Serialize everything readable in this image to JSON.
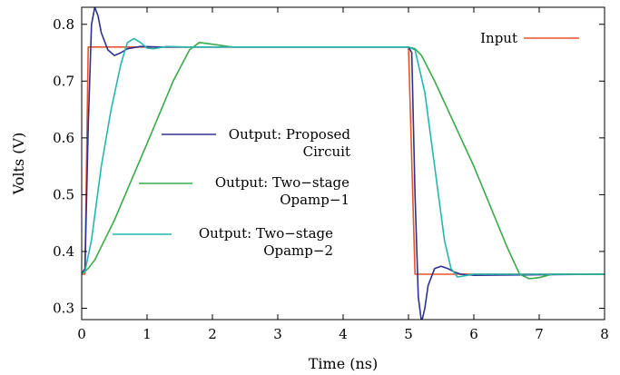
{
  "chart_data": {
    "type": "line",
    "xlabel": "Time (ns)",
    "ylabel": "Volts (V)",
    "xlim": [
      0,
      8
    ],
    "ylim": [
      0.28,
      0.83
    ],
    "x_ticks": [
      "0",
      "1",
      "2",
      "3",
      "4",
      "5",
      "6",
      "7",
      "8"
    ],
    "y_ticks": [
      "0.3",
      "0.4",
      "0.5",
      "0.6",
      "0.7",
      "0.8"
    ],
    "x_tick_values": [
      0,
      1,
      2,
      3,
      4,
      5,
      6,
      7,
      8
    ],
    "y_tick_values": [
      0.3,
      0.4,
      0.5,
      0.6,
      0.7,
      0.8
    ],
    "grid": false,
    "series": [
      {
        "name": "Input",
        "color": "#e8532b",
        "points": [
          [
            0,
            0.36
          ],
          [
            0.05,
            0.36
          ],
          [
            0.1,
            0.76
          ],
          [
            5.0,
            0.76
          ],
          [
            5.1,
            0.36
          ],
          [
            8.0,
            0.36
          ]
        ]
      },
      {
        "name": "Output: Proposed Circuit",
        "name_lines": [
          "Output: Proposed",
          "Circuit"
        ],
        "color": "#2e3192",
        "points": [
          [
            0,
            0.36
          ],
          [
            0.05,
            0.37
          ],
          [
            0.1,
            0.62
          ],
          [
            0.15,
            0.8
          ],
          [
            0.2,
            0.83
          ],
          [
            0.25,
            0.815
          ],
          [
            0.3,
            0.785
          ],
          [
            0.4,
            0.755
          ],
          [
            0.5,
            0.745
          ],
          [
            0.6,
            0.75
          ],
          [
            0.7,
            0.757
          ],
          [
            0.9,
            0.761
          ],
          [
            1.2,
            0.76
          ],
          [
            5.0,
            0.76
          ],
          [
            5.05,
            0.75
          ],
          [
            5.1,
            0.5
          ],
          [
            5.15,
            0.32
          ],
          [
            5.2,
            0.275
          ],
          [
            5.25,
            0.3
          ],
          [
            5.3,
            0.34
          ],
          [
            5.4,
            0.37
          ],
          [
            5.5,
            0.374
          ],
          [
            5.6,
            0.37
          ],
          [
            5.7,
            0.364
          ],
          [
            5.8,
            0.36
          ],
          [
            6.0,
            0.358
          ],
          [
            8.0,
            0.36
          ]
        ]
      },
      {
        "name": "Output: Two-stage Opamp-1",
        "name_lines": [
          "Output: Two−stage",
          "Opamp−1"
        ],
        "color": "#3aaa49",
        "points": [
          [
            0,
            0.36
          ],
          [
            0.1,
            0.37
          ],
          [
            0.2,
            0.385
          ],
          [
            0.5,
            0.455
          ],
          [
            1.0,
            0.59
          ],
          [
            1.4,
            0.7
          ],
          [
            1.65,
            0.755
          ],
          [
            1.8,
            0.768
          ],
          [
            2.0,
            0.765
          ],
          [
            2.3,
            0.76
          ],
          [
            5.0,
            0.76
          ],
          [
            5.1,
            0.757
          ],
          [
            5.2,
            0.745
          ],
          [
            5.4,
            0.7
          ],
          [
            6.0,
            0.55
          ],
          [
            6.5,
            0.41
          ],
          [
            6.7,
            0.36
          ],
          [
            6.85,
            0.352
          ],
          [
            7.0,
            0.354
          ],
          [
            7.2,
            0.36
          ],
          [
            8.0,
            0.36
          ]
        ]
      },
      {
        "name": "Output: Two-stage Opamp-2",
        "name_lines": [
          "Output: Two−stage",
          "Opamp−2"
        ],
        "color": "#27b5b0",
        "points": [
          [
            0,
            0.36
          ],
          [
            0.05,
            0.365
          ],
          [
            0.15,
            0.42
          ],
          [
            0.3,
            0.55
          ],
          [
            0.45,
            0.65
          ],
          [
            0.6,
            0.73
          ],
          [
            0.7,
            0.768
          ],
          [
            0.8,
            0.775
          ],
          [
            0.9,
            0.768
          ],
          [
            1.0,
            0.758
          ],
          [
            1.1,
            0.757
          ],
          [
            1.3,
            0.761
          ],
          [
            1.6,
            0.76
          ],
          [
            5.0,
            0.76
          ],
          [
            5.1,
            0.755
          ],
          [
            5.25,
            0.68
          ],
          [
            5.4,
            0.55
          ],
          [
            5.55,
            0.42
          ],
          [
            5.65,
            0.37
          ],
          [
            5.75,
            0.355
          ],
          [
            5.85,
            0.357
          ],
          [
            6.0,
            0.36
          ],
          [
            8.0,
            0.36
          ]
        ]
      }
    ]
  }
}
